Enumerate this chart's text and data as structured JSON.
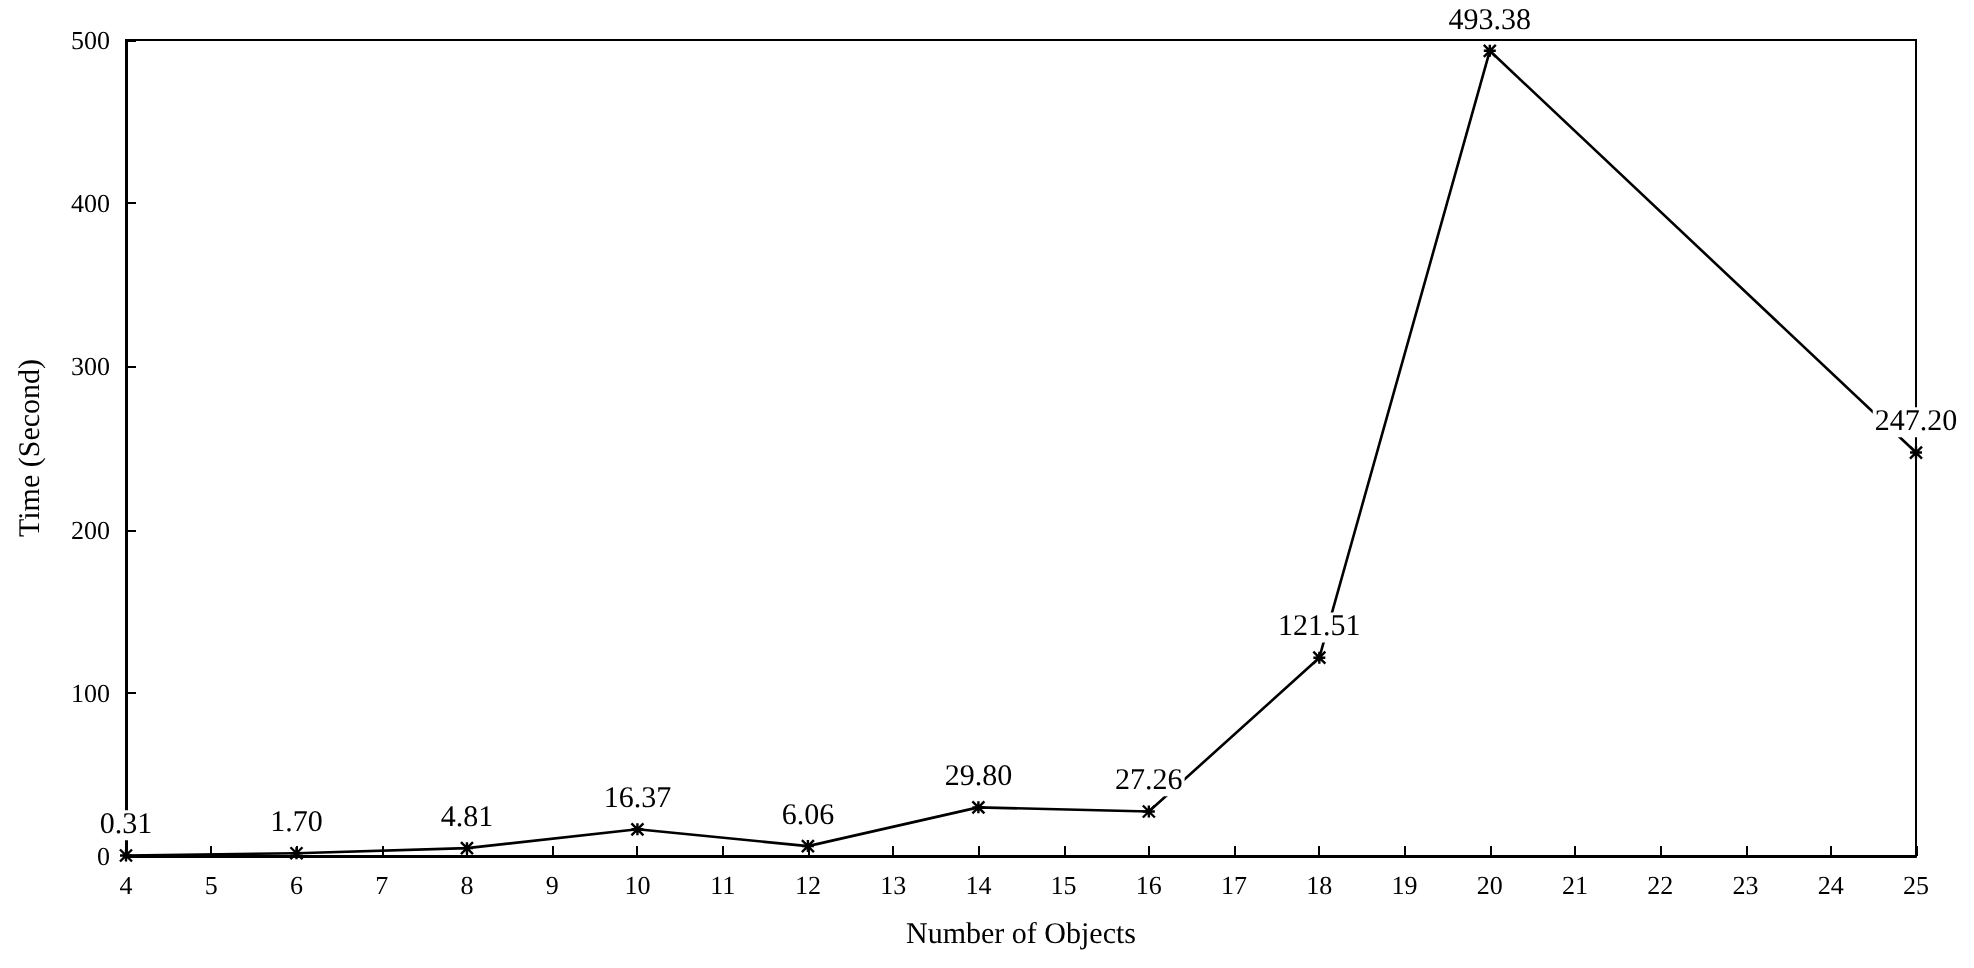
{
  "chart_data": {
    "type": "line",
    "xlabel": "Number of Objects",
    "ylabel": "Time (Second)",
    "x": [
      4,
      6,
      8,
      10,
      12,
      14,
      16,
      18,
      20,
      25
    ],
    "values": [
      0.31,
      1.7,
      4.81,
      16.37,
      6.06,
      29.8,
      27.26,
      121.51,
      493.38,
      247.2
    ],
    "value_labels": [
      "0.31",
      "1.70",
      "4.81",
      "16.37",
      "6.06",
      "29.80",
      "27.26",
      "121.51",
      "493.38",
      "247.20"
    ],
    "color": "#000000",
    "marker": "cross",
    "line_style": "solid",
    "grid": false,
    "xlim": [
      4,
      25
    ],
    "xticks": [
      4,
      5,
      6,
      7,
      8,
      9,
      10,
      11,
      12,
      13,
      14,
      15,
      16,
      17,
      18,
      19,
      20,
      21,
      22,
      23,
      24,
      25
    ],
    "ylim": [
      0,
      500
    ],
    "yticks": [
      0,
      100,
      200,
      300,
      400,
      500
    ]
  }
}
